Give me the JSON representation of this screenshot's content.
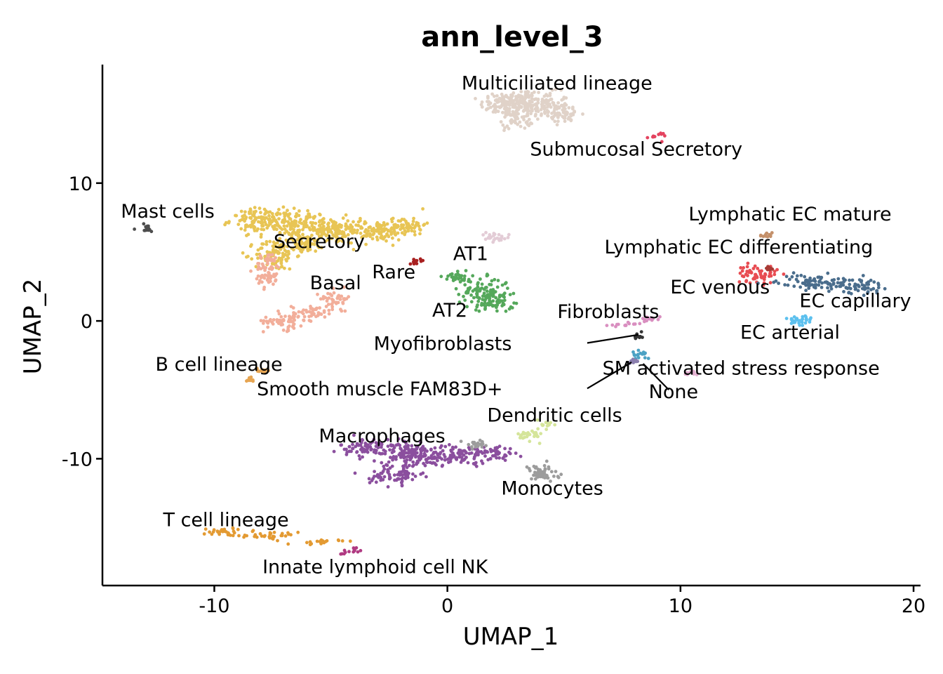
{
  "chart_data": {
    "type": "scatter",
    "title": "ann_level_3",
    "xlabel": "UMAP_1",
    "ylabel": "UMAP_2",
    "xlim": [
      -14.8,
      20.3
    ],
    "ylim": [
      -19.2,
      18.6
    ],
    "xticks": [
      {
        "value": -10,
        "label": "-10"
      },
      {
        "value": 0,
        "label": "0"
      },
      {
        "value": 10,
        "label": "10"
      },
      {
        "value": 20,
        "label": "20"
      }
    ],
    "yticks": [
      {
        "value": -10,
        "label": "-10"
      },
      {
        "value": 0,
        "label": "0"
      },
      {
        "value": 10,
        "label": "10"
      }
    ],
    "grid": false,
    "legend": "none",
    "clusters": [
      {
        "label": "Multiciliated lineage",
        "color": "#E0D2C8",
        "label_pos": [
          4.7,
          16.8
        ],
        "shape": [
          [
            2.4,
            15.7,
            0.9,
            0.8
          ],
          [
            3.2,
            15.9,
            0.9,
            0.9
          ],
          [
            4.2,
            15.6,
            0.9,
            0.9
          ],
          [
            5.0,
            15.0,
            0.7,
            0.6
          ],
          [
            3.0,
            14.6,
            0.6,
            0.6
          ]
        ]
      },
      {
        "label": "Submucosal Secretory",
        "color": "#E4435F",
        "label_pos": [
          8.1,
          12.0
        ],
        "shape": [
          [
            9.0,
            13.4,
            0.4,
            0.25
          ]
        ]
      },
      {
        "label": "Mast cells",
        "color": "#4D4D4D",
        "label_pos": [
          -12.0,
          7.5
        ],
        "shape": [
          [
            -13.0,
            6.7,
            0.45,
            0.25
          ]
        ]
      },
      {
        "label": "Secretory",
        "color": "#E8C555",
        "label_pos": [
          -5.5,
          5.3
        ],
        "shape": [
          [
            -8.0,
            7.3,
            1.2,
            0.8
          ],
          [
            -6.5,
            7.1,
            1.3,
            0.8
          ],
          [
            -5.0,
            6.5,
            1.3,
            0.8
          ],
          [
            -3.0,
            6.5,
            1.3,
            0.7
          ],
          [
            -1.6,
            7.0,
            0.6,
            0.6
          ],
          [
            -7.4,
            4.8,
            0.8,
            1.0
          ],
          [
            -6.2,
            5.6,
            0.9,
            0.6
          ]
        ]
      },
      {
        "label": "Basal",
        "color": "#F2AE9A",
        "label_pos": [
          -4.8,
          2.3
        ],
        "shape": [
          [
            -7.7,
            3.7,
            0.5,
            1.2
          ],
          [
            -7.0,
            0.0,
            0.8,
            0.6
          ],
          [
            -5.8,
            0.6,
            0.8,
            0.5
          ],
          [
            -4.8,
            1.6,
            0.6,
            0.6
          ]
        ]
      },
      {
        "label": "Rare",
        "color": "#A82020",
        "label_pos": [
          -2.3,
          3.1
        ],
        "shape": [
          [
            -1.3,
            4.4,
            0.3,
            0.2
          ]
        ]
      },
      {
        "label": "AT1",
        "color": "#E3CCD6",
        "label_pos": [
          1.0,
          4.4
        ],
        "shape": [
          [
            2.0,
            6.0,
            0.6,
            0.35
          ]
        ]
      },
      {
        "label": "AT2",
        "color": "#55A85B",
        "label_pos": [
          0.1,
          0.3
        ],
        "shape": [
          [
            1.6,
            2.0,
            1.0,
            1.0
          ],
          [
            0.4,
            3.2,
            0.5,
            0.5
          ],
          [
            2.2,
            1.2,
            0.6,
            0.4
          ]
        ]
      },
      {
        "label": "B cell lineage",
        "color": "#E6A552",
        "label_pos": [
          -9.8,
          -3.6
        ],
        "shape": [
          [
            -8.4,
            -4.2,
            0.2,
            0.2
          ],
          [
            -8.0,
            -3.6,
            0.2,
            0.2
          ]
        ]
      },
      {
        "label": "Fibroblasts",
        "color": "#D98FC0",
        "label_pos": [
          6.9,
          0.2
        ],
        "shape": [
          [
            7.5,
            -0.3,
            0.8,
            0.15
          ],
          [
            8.8,
            0.1,
            0.6,
            0.2
          ]
        ]
      },
      {
        "label": "Myofibroblasts",
        "color": "#333333",
        "label_pos": [
          -0.2,
          -2.1
        ],
        "shape": [
          [
            8.2,
            -1.2,
            0.15,
            0.3
          ]
        ]
      },
      {
        "label": "SM activated stress response",
        "color": "#4CA2C4",
        "label_pos": [
          12.6,
          -3.9
        ],
        "shape": [
          [
            8.3,
            -2.4,
            0.4,
            0.35
          ]
        ]
      },
      {
        "label": "Smooth muscle FAM83D+",
        "color": "#8A7EAE",
        "label_pos": [
          -2.9,
          -5.4
        ],
        "shape": [
          [
            8.0,
            -2.9,
            0.2,
            0.15
          ]
        ]
      },
      {
        "label": "None",
        "color": "#E3B0D0",
        "label_pos": [
          9.7,
          -5.6
        ],
        "shape": [
          [
            10.4,
            -3.8,
            0.3,
            0.15
          ]
        ]
      },
      {
        "label": "Lymphatic EC mature",
        "color": "#C4906A",
        "label_pos": [
          14.7,
          7.3
        ],
        "shape": [
          [
            13.7,
            6.2,
            0.25,
            0.2
          ]
        ]
      },
      {
        "label": "Lymphatic EC differentiating",
        "color": "#E84C52",
        "label_pos": [
          12.5,
          4.9
        ],
        "shape": [
          [
            13.3,
            3.4,
            0.8,
            0.6
          ]
        ]
      },
      {
        "label": "EC venous",
        "color": "#4A6D8C",
        "label_pos": [
          11.7,
          2.0
        ],
        "shape": [
          [
            15.8,
            2.8,
            1.5,
            0.5
          ],
          [
            17.8,
            2.5,
            0.8,
            0.5
          ]
        ]
      },
      {
        "label": "EC capillary",
        "color": "#A83B35",
        "label_pos": [
          17.5,
          1.0
        ],
        "shape": [
          [
            13.8,
            3.8,
            0.2,
            0.2
          ]
        ]
      },
      {
        "label": "EC arterial",
        "color": "#5CC0EE",
        "label_pos": [
          14.7,
          -1.3
        ],
        "shape": [
          [
            15.1,
            0.0,
            0.5,
            0.5
          ]
        ]
      },
      {
        "label": "Dendritic cells",
        "color": "#D5E59B",
        "label_pos": [
          4.6,
          -7.3
        ],
        "shape": [
          [
            3.6,
            -8.3,
            0.5,
            0.4
          ],
          [
            4.2,
            -7.6,
            0.3,
            0.4
          ]
        ]
      },
      {
        "label": "Macrophages",
        "color": "#8B4F9E",
        "label_pos": [
          -2.8,
          -8.8
        ],
        "shape": [
          [
            -3.2,
            -9.2,
            1.3,
            0.6
          ],
          [
            -1.5,
            -9.8,
            1.3,
            0.8
          ],
          [
            0.5,
            -9.7,
            1.2,
            0.6
          ],
          [
            2.0,
            -9.6,
            0.8,
            0.5
          ],
          [
            -2.2,
            -11.2,
            1.0,
            0.6
          ]
        ]
      },
      {
        "label": "Monocytes",
        "color": "#9C9C9C",
        "label_pos": [
          4.5,
          -12.6
        ],
        "shape": [
          [
            4.0,
            -11.1,
            0.7,
            0.6
          ],
          [
            1.3,
            -9.0,
            0.6,
            0.3
          ]
        ]
      },
      {
        "label": "T cell lineage",
        "color": "#E39A32",
        "label_pos": [
          -9.5,
          -14.9
        ],
        "shape": [
          [
            -9.5,
            -15.3,
            0.9,
            0.3
          ],
          [
            -7.5,
            -15.6,
            1.0,
            0.25
          ],
          [
            -5.5,
            -16.0,
            0.8,
            0.2
          ]
        ]
      },
      {
        "label": "Innate lymphoid cell NK",
        "color": "#B03A82",
        "label_pos": [
          -3.1,
          -18.3
        ],
        "shape": [
          [
            -4.2,
            -16.7,
            0.5,
            0.25
          ]
        ]
      }
    ],
    "annotation_lines": [
      {
        "from": [
          6.0,
          -1.6
        ],
        "to": [
          8.2,
          -1.0
        ]
      },
      {
        "from": [
          6.0,
          -4.9
        ],
        "to": [
          7.9,
          -3.0
        ]
      },
      {
        "from": [
          9.5,
          -5.0
        ],
        "to": [
          8.4,
          -3.1
        ]
      }
    ]
  }
}
